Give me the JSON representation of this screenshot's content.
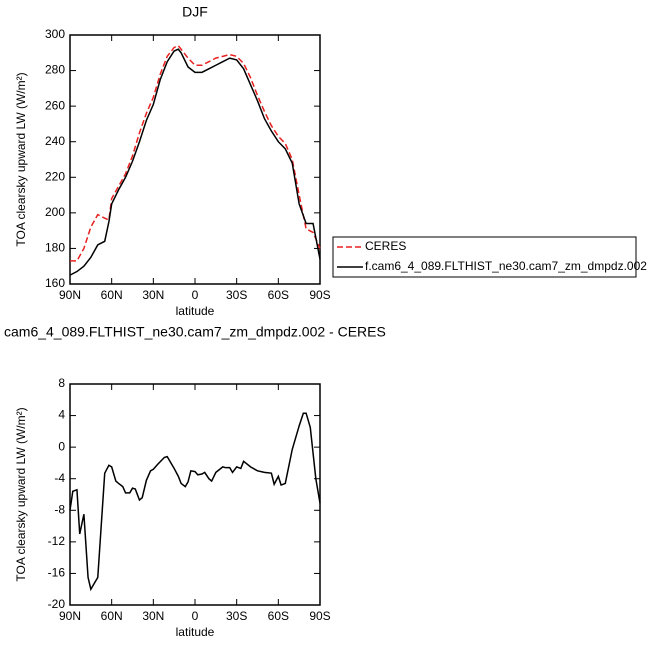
{
  "chart_data": [
    {
      "type": "line",
      "title": "DJF",
      "xlabel": "latitude",
      "ylabel": "TOA clearsky upward LW (W/m²)",
      "xlim": [
        90,
        -90
      ],
      "xticks": [
        {
          "value": 90,
          "label": "90N"
        },
        {
          "value": 60,
          "label": "60N"
        },
        {
          "value": 30,
          "label": "30N"
        },
        0,
        {
          "value": -30,
          "label": "30S"
        },
        {
          "value": -60,
          "label": "60S"
        },
        {
          "value": -90,
          "label": "90S"
        }
      ],
      "ylim": [
        160,
        300
      ],
      "yticks": [
        160,
        180,
        200,
        220,
        240,
        260,
        280,
        300
      ],
      "legend": "right",
      "x": [
        90,
        85,
        80,
        75,
        70,
        65,
        62,
        60,
        55,
        50,
        45,
        40,
        35,
        30,
        25,
        20,
        15,
        12,
        10,
        5,
        0,
        -5,
        -10,
        -15,
        -20,
        -25,
        -30,
        -35,
        -40,
        -45,
        -50,
        -55,
        -60,
        -65,
        -70,
        -75,
        -80,
        -85,
        -90
      ],
      "series": [
        {
          "name": "CERES",
          "color": "#e8211f",
          "line_style": "dashed",
          "values": [
            173,
            173,
            180,
            192,
            199,
            197,
            196,
            208,
            215,
            222,
            232,
            245,
            256,
            265,
            278,
            288,
            293,
            294,
            292,
            287,
            283,
            283,
            285,
            287,
            288,
            289,
            288,
            284,
            276,
            266,
            257,
            249,
            243,
            239,
            230,
            210,
            191,
            189,
            180
          ]
        },
        {
          "name": "f.cam6_4_089.FLTHIST_ne30.cam7_zm_dmpdz.002",
          "color": "#000000",
          "line_style": "solid",
          "values": [
            165,
            167,
            170,
            175,
            182,
            184,
            195,
            205,
            213,
            220,
            229,
            240,
            252,
            261,
            275,
            285,
            291,
            292,
            290,
            282,
            279,
            279,
            281,
            283,
            285,
            287,
            286,
            281,
            272,
            263,
            253,
            246,
            240,
            236,
            228,
            205,
            194,
            194,
            174
          ]
        }
      ]
    },
    {
      "type": "line",
      "title": "cam6_4_089.FLTHIST_ne30.cam7_zm_dmpdz.002 - CERES",
      "xlabel": "latitude",
      "ylabel": "TOA clearsky upward LW (W/m²)",
      "xlim": [
        90,
        -90
      ],
      "xticks": [
        {
          "value": 90,
          "label": "90N"
        },
        {
          "value": 60,
          "label": "60N"
        },
        {
          "value": 30,
          "label": "30N"
        },
        0,
        {
          "value": -30,
          "label": "30S"
        },
        {
          "value": -60,
          "label": "60S"
        },
        {
          "value": -90,
          "label": "90S"
        }
      ],
      "ylim": [
        -20,
        8
      ],
      "yticks": [
        -20,
        -16,
        -12,
        -8,
        -4,
        0,
        4,
        8
      ],
      "x": [
        90,
        88,
        85,
        83,
        80,
        77,
        75,
        70,
        65,
        62,
        60,
        57,
        55,
        52,
        50,
        47,
        45,
        43,
        40,
        38,
        35,
        32,
        30,
        27,
        22,
        20,
        15,
        12,
        10,
        7,
        5,
        3,
        0,
        -2,
        -5,
        -7,
        -10,
        -12,
        -15,
        -20,
        -22,
        -25,
        -27,
        -30,
        -33,
        -35,
        -40,
        -45,
        -50,
        -55,
        -57,
        -60,
        -62,
        -65,
        -70,
        -72,
        -75,
        -78,
        -80,
        -83,
        -87,
        -90
      ],
      "series": [
        {
          "color": "#000000",
          "line_style": "solid",
          "values": [
            -8,
            -5.6,
            -5.4,
            -11,
            -8.5,
            -16.5,
            -18,
            -16.5,
            -3.3,
            -2.3,
            -2.5,
            -4.3,
            -4.6,
            -5,
            -5.8,
            -5.8,
            -5.2,
            -5.3,
            -6.7,
            -6.4,
            -4.2,
            -3,
            -2.8,
            -2.2,
            -1.3,
            -1.2,
            -2.7,
            -3.7,
            -4.6,
            -5,
            -4.4,
            -3,
            -3.1,
            -3.5,
            -3.4,
            -3.2,
            -4,
            -4.3,
            -3.2,
            -2.5,
            -2.6,
            -2.6,
            -3.2,
            -2.5,
            -2.7,
            -1.8,
            -2.5,
            -3,
            -3.2,
            -3.3,
            -4.7,
            -3.7,
            -4.8,
            -4.6,
            -0.3,
            0.9,
            2.7,
            4.3,
            4.3,
            2.5,
            -4,
            -7.1
          ]
        }
      ]
    }
  ]
}
